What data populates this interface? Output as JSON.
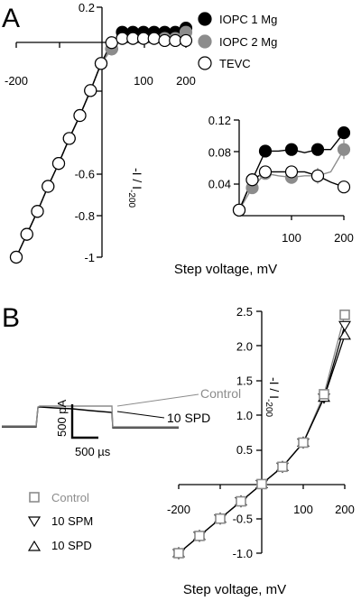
{
  "panel_a": {
    "letter": "A",
    "legend": [
      {
        "label": "IOPC 1 Mg",
        "fill": "#000000",
        "stroke": "#000000"
      },
      {
        "label": "IOPC 2 Mg",
        "fill": "#8c8c8c",
        "stroke": "#8c8c8c"
      },
      {
        "label": "TEVC",
        "fill": "#ffffff",
        "stroke": "#000000"
      }
    ],
    "xlabel": "Step voltage, mV",
    "ylabel_main": "-I / I",
    "ylabel_sub": "-200"
  },
  "panel_b": {
    "letter": "B",
    "trace_labels": {
      "control": "Control",
      "spd": "10 SPD"
    },
    "scale_current": "500 pA",
    "scale_time": "500 µs",
    "legend": [
      {
        "label": "Control",
        "marker": "square",
        "color": "#8c8c8c"
      },
      {
        "label": "10 SPM",
        "marker": "triangle-down",
        "color": "#000000"
      },
      {
        "label": "10 SPD",
        "marker": "triangle-up",
        "color": "#000000"
      }
    ],
    "xlabel": "Step voltage, mV",
    "ylabel_main": "-I / I",
    "ylabel_sub": "-200"
  },
  "chart_data": [
    {
      "type": "line",
      "panel": "A main",
      "xlabel": "Step voltage, mV",
      "ylabel": "-I / I-200",
      "xlim": [
        -200,
        200
      ],
      "ylim": [
        -1.0,
        0.2
      ],
      "x_ticks": [
        -200,
        100,
        200
      ],
      "y_ticks": [
        0.2,
        -0.6,
        -0.8,
        -1.0
      ],
      "series": [
        {
          "name": "IOPC 1 Mg",
          "x": [
            -200,
            -175,
            -150,
            -125,
            -100,
            -75,
            -50,
            -25,
            0,
            25,
            50,
            75,
            100,
            125,
            150,
            175,
            200
          ],
          "y": [
            -1.0,
            -0.89,
            -0.78,
            -0.66,
            -0.55,
            -0.43,
            -0.32,
            -0.2,
            -0.07,
            0.0,
            0.08,
            0.08,
            0.08,
            0.08,
            0.08,
            0.08,
            0.1
          ]
        },
        {
          "name": "IOPC 2 Mg",
          "x": [
            -200,
            -175,
            -150,
            -125,
            -100,
            -75,
            -50,
            -25,
            0,
            25,
            50,
            75,
            100,
            125,
            150,
            175,
            200
          ],
          "y": [
            -1.0,
            -0.89,
            -0.78,
            -0.66,
            -0.55,
            -0.43,
            -0.32,
            -0.2,
            -0.07,
            0.0,
            0.05,
            0.05,
            0.05,
            0.05,
            0.05,
            0.05,
            0.08
          ]
        },
        {
          "name": "TEVC",
          "x": [
            -200,
            -175,
            -150,
            -125,
            -100,
            -75,
            -50,
            -25,
            0,
            25,
            50,
            75,
            100,
            125,
            150,
            175,
            200
          ],
          "y": [
            -1.0,
            -0.89,
            -0.78,
            -0.66,
            -0.55,
            -0.43,
            -0.32,
            -0.2,
            -0.07,
            0.03,
            0.05,
            0.05,
            0.05,
            0.05,
            0.04,
            0.04,
            0.04
          ]
        }
      ]
    },
    {
      "type": "line",
      "panel": "A inset",
      "xlim": [
        0,
        200
      ],
      "ylim": [
        0.0,
        0.12
      ],
      "x_ticks": [
        100,
        200
      ],
      "y_ticks": [
        0.12,
        0.08,
        0.04
      ],
      "series": [
        {
          "name": "IOPC 1 Mg",
          "x": [
            0,
            25,
            50,
            75,
            100,
            125,
            150,
            175,
            200
          ],
          "y": [
            0.007,
            0.045,
            0.081,
            0.081,
            0.083,
            0.079,
            0.083,
            0.083,
            0.104
          ]
        },
        {
          "name": "IOPC 2 Mg",
          "x": [
            0,
            25,
            50,
            75,
            100,
            125,
            150,
            175,
            200
          ],
          "y": [
            0.007,
            0.035,
            0.053,
            0.05,
            0.048,
            0.05,
            0.05,
            0.055,
            0.083
          ]
        },
        {
          "name": "TEVC",
          "x": [
            0,
            25,
            50,
            75,
            100,
            125,
            150,
            175,
            200
          ],
          "y": [
            0.007,
            0.045,
            0.055,
            0.055,
            0.055,
            0.055,
            0.05,
            0.042,
            0.036
          ]
        }
      ]
    },
    {
      "type": "line",
      "panel": "B",
      "xlabel": "Step voltage, mV",
      "ylabel": "-I / I-200",
      "xlim": [
        -200,
        200
      ],
      "ylim": [
        -1.0,
        2.5
      ],
      "x_ticks": [
        -200,
        100,
        200
      ],
      "y_ticks": [
        2.5,
        2.0,
        1.5,
        1.0,
        0.5,
        -0.5,
        -1.0
      ],
      "series": [
        {
          "name": "Control",
          "x": [
            -200,
            -150,
            -100,
            -50,
            0,
            50,
            100,
            150,
            200
          ],
          "y": [
            -1.0,
            -0.75,
            -0.5,
            -0.25,
            0.0,
            0.25,
            0.6,
            1.3,
            2.45
          ]
        },
        {
          "name": "10 SPM",
          "x": [
            -200,
            -150,
            -100,
            -50,
            0,
            50,
            100,
            150,
            200
          ],
          "y": [
            -1.0,
            -0.75,
            -0.5,
            -0.25,
            0.0,
            0.25,
            0.6,
            1.25,
            2.3
          ]
        },
        {
          "name": "10 SPD",
          "x": [
            -200,
            -150,
            -100,
            -50,
            0,
            50,
            100,
            150,
            200
          ],
          "y": [
            -1.0,
            -0.75,
            -0.5,
            -0.25,
            0.0,
            0.25,
            0.6,
            1.25,
            2.15
          ]
        }
      ]
    }
  ]
}
